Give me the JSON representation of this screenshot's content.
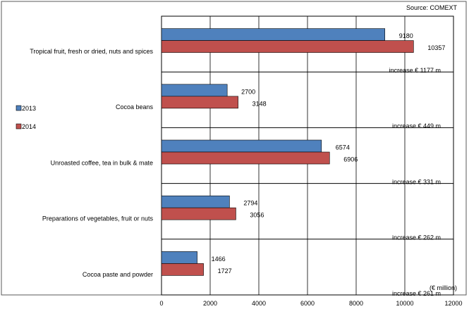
{
  "chart_data": {
    "type": "bar",
    "orientation": "horizontal",
    "source": "Source: COMEXT",
    "unit_note": "(€ million)",
    "categories": [
      "Tropical fruit, fresh or dried, nuts and spices",
      "Cocoa beans",
      "Unroasted coffee, tea in bulk & mate",
      "Preparations of vegetables, fruit or nuts",
      "Cocoa paste and powder"
    ],
    "series": [
      {
        "name": "2013",
        "color": "#4F81BD",
        "values": [
          9180,
          2700,
          6574,
          2794,
          1466
        ]
      },
      {
        "name": "2014",
        "color": "#C0504D",
        "values": [
          10357,
          3148,
          6906,
          3056,
          1727
        ]
      }
    ],
    "annotations": [
      "increase € 1177 m",
      "increase € 449 m",
      "increase € 331 m",
      "increase € 262 m",
      "increase € 261 m"
    ],
    "xlim": [
      0,
      12000
    ],
    "xticks": [
      0,
      2000,
      4000,
      6000,
      8000,
      10000,
      12000
    ],
    "grid": true,
    "legend_position": "left"
  }
}
